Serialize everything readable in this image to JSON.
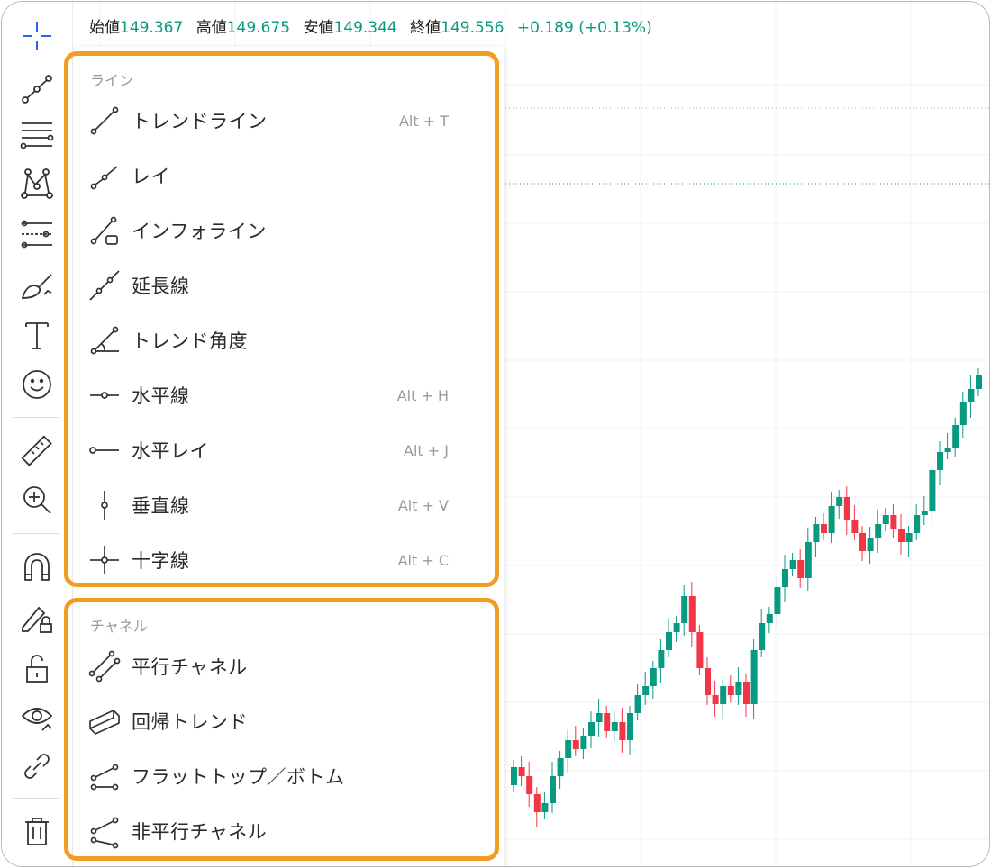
{
  "ohlc": {
    "open_label": "始値",
    "open": "149.367",
    "high_label": "高値",
    "high": "149.675",
    "low_label": "安値",
    "low": "149.344",
    "close_label": "終値",
    "close": "149.556",
    "change": "+0.189 (+0.13%)"
  },
  "colors": {
    "accent_box": "#f39c23",
    "up": "#089981",
    "down": "#f23645",
    "text": "#2a2a2a"
  },
  "toolbar": [
    "crosshair-icon",
    "trendline-tool-icon",
    "fib-retracement-icon",
    "pattern-icon",
    "prediction-icon",
    "brush-icon",
    "text-icon",
    "emoji-icon",
    "ruler-icon",
    "zoom-in-icon",
    "magnet-icon",
    "lock-drawing-icon",
    "lock-icon",
    "eye-icon",
    "link-icon",
    "trash-icon"
  ],
  "menu": {
    "lines_title": "ライン",
    "lines": [
      {
        "label": "トレンドライン",
        "shortcut": "Alt + T",
        "icon": "trendline-icon"
      },
      {
        "label": "レイ",
        "shortcut": "",
        "icon": "ray-icon"
      },
      {
        "label": "インフォライン",
        "shortcut": "",
        "icon": "info-line-icon"
      },
      {
        "label": "延長線",
        "shortcut": "",
        "icon": "extended-line-icon"
      },
      {
        "label": "トレンド角度",
        "shortcut": "",
        "icon": "trend-angle-icon"
      },
      {
        "label": "水平線",
        "shortcut": "Alt + H",
        "icon": "horizontal-line-icon"
      },
      {
        "label": "水平レイ",
        "shortcut": "Alt + J",
        "icon": "horizontal-ray-icon"
      },
      {
        "label": "垂直線",
        "shortcut": "Alt + V",
        "icon": "vertical-line-icon"
      },
      {
        "label": "十字線",
        "shortcut": "Alt + C",
        "icon": "cross-line-icon"
      }
    ],
    "channels_title": "チャネル",
    "channels": [
      {
        "label": "平行チャネル",
        "icon": "parallel-channel-icon"
      },
      {
        "label": "回帰トレンド",
        "icon": "regression-trend-icon"
      },
      {
        "label": "フラットトップ／ボトム",
        "icon": "flat-top-bottom-icon"
      },
      {
        "label": "非平行チャネル",
        "icon": "disjoint-channel-icon"
      }
    ]
  }
}
